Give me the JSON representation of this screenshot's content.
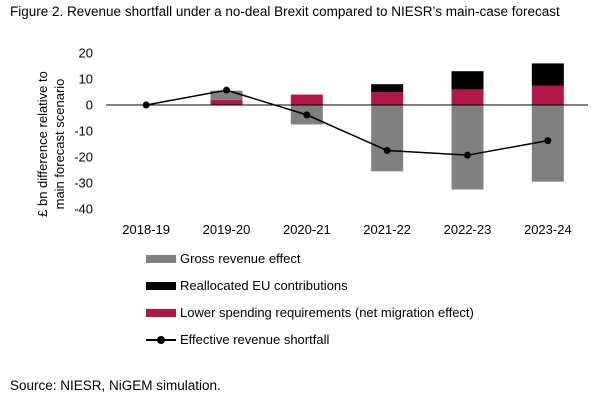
{
  "figure": {
    "title": "Figure 2. Revenue shortfall under a no-deal Brexit compared to NIESR’s main-case forecast",
    "source": "Source: NIESR, NiGEM simulation."
  },
  "chart_data": {
    "type": "bar",
    "stacked": true,
    "categories": [
      "2018-19",
      "2019-20",
      "2020-21",
      "2021-22",
      "2022-23",
      "2023-24"
    ],
    "ylabel": "£ bn difference relative to main forecast scenario",
    "xlabel": "",
    "ylim": [
      -40,
      20
    ],
    "yticks": [
      20,
      10,
      0,
      -10,
      -20,
      -30,
      -40
    ],
    "grid": false,
    "legend_position": "bottom",
    "series": [
      {
        "name": "Gross revenue effect",
        "kind": "bar",
        "color": "#808080",
        "values": [
          0,
          3.5,
          -7.5,
          -25.5,
          -32.5,
          -29.5
        ]
      },
      {
        "name": "Reallocated EU contributions",
        "kind": "bar",
        "color": "#000000",
        "values": [
          0,
          0,
          0,
          3,
          7,
          8.5
        ]
      },
      {
        "name": "Lower spending requirements (net migration effect)",
        "kind": "bar",
        "color": "#b5164a",
        "values": [
          0,
          2,
          4,
          5,
          6,
          7.5
        ]
      },
      {
        "name": "Effective revenue shortfall",
        "kind": "line",
        "color": "#000000",
        "values": [
          0,
          5.7,
          -3.8,
          -17.5,
          -19.3,
          -13.7
        ]
      }
    ]
  }
}
